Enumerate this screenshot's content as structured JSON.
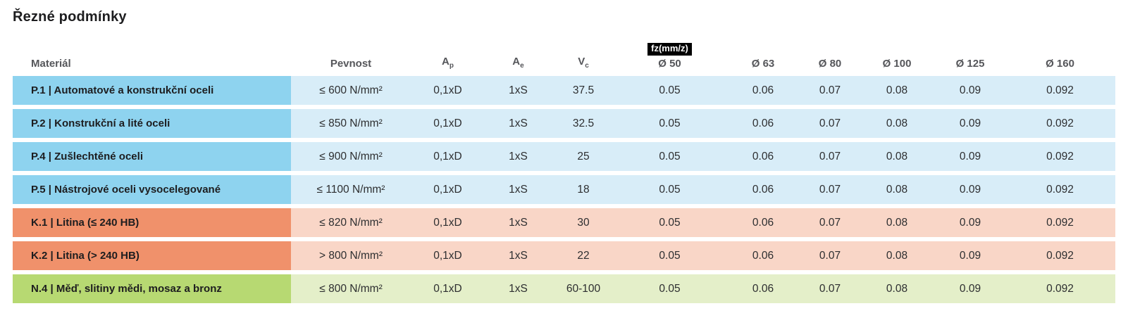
{
  "page": {
    "title": "Řezné podmínky"
  },
  "colors": {
    "title_text": "#1d1d1f",
    "header_text": "#55565a",
    "cell_text": "#2d2e30",
    "badge_bg": "#000000",
    "badge_text": "#ffffff",
    "blue_dark": "#8ed3ef",
    "blue_light": "#d8edf8",
    "salmon_dark": "#f0916b",
    "salmon_light": "#f9d6c7",
    "green_dark": "#b7d972",
    "green_light": "#e4efc9"
  },
  "table": {
    "headers": {
      "material": "Materiál",
      "pevnost": "Pevnost",
      "ap": {
        "base": "A",
        "sub": "p"
      },
      "ae": {
        "base": "A",
        "sub": "e"
      },
      "vc": {
        "base": "V",
        "sub": "c"
      },
      "fz_badge": "fz(mm/z)",
      "diameters": [
        "Ø 50",
        "Ø 63",
        "Ø 80",
        "Ø 100",
        "Ø 125",
        "Ø 160"
      ]
    },
    "rows": [
      {
        "material": "P.1 | Automatové a konstrukční oceli",
        "pevnost": "≤ 600 N/mm²",
        "ap": "0,1xD",
        "ae": "1xS",
        "vc": "37.5",
        "fz": [
          "0.05",
          "0.06",
          "0.07",
          "0.08",
          "0.09",
          "0.092"
        ],
        "color": "blue"
      },
      {
        "material": "P.2 | Konstrukční a lité oceli",
        "pevnost": "≤ 850 N/mm²",
        "ap": "0,1xD",
        "ae": "1xS",
        "vc": "32.5",
        "fz": [
          "0.05",
          "0.06",
          "0.07",
          "0.08",
          "0.09",
          "0.092"
        ],
        "color": "blue"
      },
      {
        "material": "P.4 | Zušlechtěné oceli",
        "pevnost": "≤ 900 N/mm²",
        "ap": "0,1xD",
        "ae": "1xS",
        "vc": "25",
        "fz": [
          "0.05",
          "0.06",
          "0.07",
          "0.08",
          "0.09",
          "0.092"
        ],
        "color": "blue"
      },
      {
        "material": "P.5 | Nástrojové oceli vysocelegované",
        "pevnost": "≤ 1100 N/mm²",
        "ap": "0,1xD",
        "ae": "1xS",
        "vc": "18",
        "fz": [
          "0.05",
          "0.06",
          "0.07",
          "0.08",
          "0.09",
          "0.092"
        ],
        "color": "blue"
      },
      {
        "material": "K.1 | Litina (≤ 240 HB)",
        "pevnost": "≤ 820 N/mm²",
        "ap": "0,1xD",
        "ae": "1xS",
        "vc": "30",
        "fz": [
          "0.05",
          "0.06",
          "0.07",
          "0.08",
          "0.09",
          "0.092"
        ],
        "color": "salmon"
      },
      {
        "material": "K.2 | Litina (> 240 HB)",
        "pevnost": "> 800 N/mm²",
        "ap": "0,1xD",
        "ae": "1xS",
        "vc": "22",
        "fz": [
          "0.05",
          "0.06",
          "0.07",
          "0.08",
          "0.09",
          "0.092"
        ],
        "color": "salmon"
      },
      {
        "material": "N.4 | Měď, slitiny mědi, mosaz a bronz",
        "pevnost": "≤ 800 N/mm²",
        "ap": "0,1xD",
        "ae": "1xS",
        "vc": "60-100",
        "fz": [
          "0.05",
          "0.06",
          "0.07",
          "0.08",
          "0.09",
          "0.092"
        ],
        "color": "green"
      }
    ]
  }
}
